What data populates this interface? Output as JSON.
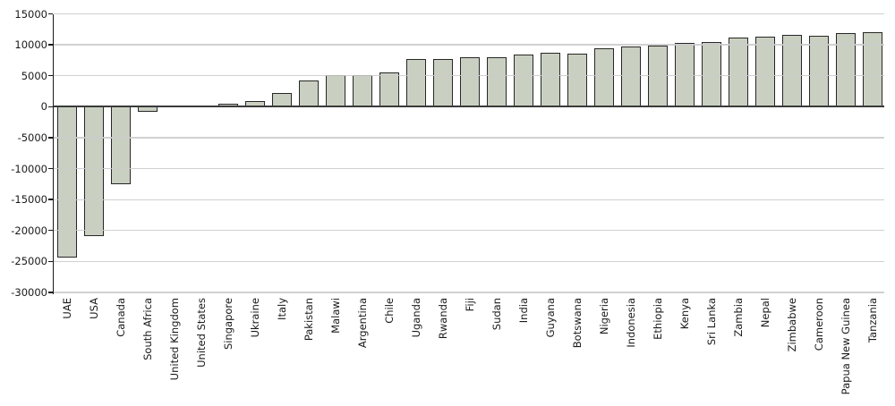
{
  "colors": {
    "background": "#ffffff",
    "bar_fill": "#c9d0c1",
    "bar_border": "#272727",
    "gridline": "#cbcbcb",
    "zero_line": "#3a3a3a",
    "axis": "#1a1a1a",
    "text": "#1a1a1a"
  },
  "chart_data": {
    "type": "bar",
    "title": "",
    "xlabel": "",
    "ylabel": "",
    "categories": [
      "UAE",
      "USA",
      "Canada",
      "South Africa",
      "United Kingdom",
      "United States",
      "Singapore",
      "Ukraine",
      "Italy",
      "Pakistan",
      "Malawi",
      "Argentina",
      "Chile",
      "Uganda",
      "Rwanda",
      "Fiji",
      "Sudan",
      "India",
      "Guyana",
      "Botswana",
      "Nigeria",
      "Indonesia",
      "Ethiopia",
      "Kenya",
      "Sri Lanka",
      "Zambia",
      "Nepal",
      "Zimbabwe",
      "Cameroon",
      "Papua New Guinea",
      "Tanzania"
    ],
    "values": [
      -24400,
      -20900,
      -12500,
      -800,
      150,
      200,
      550,
      950,
      2200,
      4300,
      5100,
      5100,
      5500,
      7700,
      7700,
      7950,
      8050,
      8400,
      8650,
      8550,
      9400,
      9700,
      9800,
      10300,
      10500,
      11100,
      11350,
      11550,
      11500,
      11850,
      12050
    ],
    "ylim": [
      -30000,
      15000
    ],
    "yticks": [
      15000,
      10000,
      5000,
      0,
      -5000,
      -10000,
      -15000,
      -20000,
      -25000,
      -30000
    ],
    "ytick_labels": [
      "15000",
      "10000",
      "5000",
      "0",
      "-5000",
      "-10000",
      "-15000",
      "-20000",
      "-25000",
      "-30000"
    ],
    "grid": "horizontal",
    "legend": "none",
    "xlabel_rotation_deg": 90
  }
}
